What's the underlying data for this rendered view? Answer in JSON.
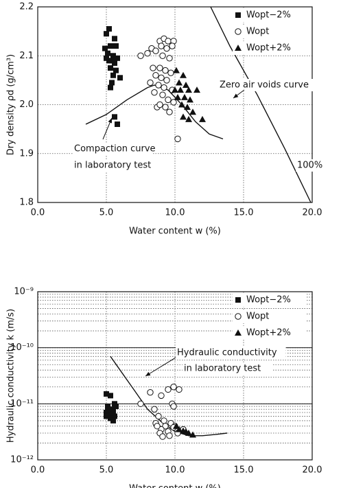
{
  "chart_data": [
    {
      "type": "scatter",
      "xlabel": "Water content w (%)",
      "ylabel": "Dry density ρd (g/cm³)",
      "xlim": [
        0,
        20
      ],
      "ylim": [
        1.8,
        2.2
      ],
      "xticks": [
        {
          "value": 0,
          "label": "0.0"
        },
        {
          "value": 5,
          "label": "5.0"
        },
        {
          "value": 10,
          "label": "10.0"
        },
        {
          "value": 15,
          "label": "15.0"
        },
        {
          "value": 20,
          "label": "20.0"
        }
      ],
      "yticks": [
        1.8,
        1.9,
        {
          "value": 2.0,
          "label": "2.0"
        },
        2.1,
        2.2
      ],
      "grid": true,
      "legend": "upper right",
      "series": [
        {
          "name": "Wopt−2%",
          "marker": "square",
          "color": "#111",
          "x": [
            5.2,
            5.0,
            5.6,
            4.9,
            5.3,
            5.7,
            5.1,
            5.5,
            5.8,
            5.2,
            5.4,
            5.6,
            5.0,
            5.3,
            5.7,
            5.5,
            6.0,
            5.4,
            5.3,
            5.6,
            5.8
          ],
          "values": [
            2.155,
            2.145,
            2.135,
            2.115,
            2.12,
            2.12,
            2.105,
            2.1,
            2.095,
            2.09,
            2.09,
            2.085,
            2.095,
            2.075,
            2.07,
            2.06,
            2.055,
            2.045,
            2.035,
            1.975,
            1.96
          ]
        },
        {
          "name": "Wopt",
          "marker": "circle",
          "color": "#111",
          "x": [
            7.5,
            8.0,
            8.3,
            8.6,
            8.9,
            9.2,
            9.5,
            9.9,
            9.0,
            9.4,
            9.8,
            9.1,
            9.6,
            8.4,
            8.9,
            9.3,
            9.7,
            8.6,
            9.0,
            9.4,
            8.2,
            8.8,
            9.2,
            9.8,
            8.5,
            9.1,
            9.5,
            8.7,
            9.3,
            9.6,
            8.9,
            9.9,
            10.2
          ],
          "values": [
            2.1,
            2.105,
            2.115,
            2.11,
            2.13,
            2.135,
            2.13,
            2.13,
            2.12,
            2.115,
            2.12,
            2.1,
            2.095,
            2.075,
            2.075,
            2.07,
            2.065,
            2.06,
            2.055,
            2.05,
            2.045,
            2.04,
            2.035,
            2.03,
            2.025,
            2.02,
            2.01,
            1.995,
            1.995,
            1.985,
            2.0,
            2.005,
            1.93
          ]
        },
        {
          "name": "Wopt+2%",
          "marker": "triangle",
          "color": "#111",
          "x": [
            10.1,
            10.6,
            10.3,
            10.8,
            10.0,
            10.4,
            11.0,
            11.6,
            10.2,
            10.7,
            11.1,
            10.5,
            10.9,
            11.3,
            10.6,
            12.0,
            11.0
          ],
          "values": [
            2.07,
            2.06,
            2.045,
            2.04,
            2.03,
            2.03,
            2.03,
            2.03,
            2.015,
            2.015,
            2.01,
            2.0,
            1.995,
            1.985,
            1.975,
            1.97,
            1.97
          ]
        }
      ],
      "lines": [
        {
          "x": [
            12.6,
            14.0,
            16.0,
            18.0,
            19.9
          ],
          "values": [
            2.2,
            2.12,
            2.02,
            1.91,
            1.8
          ]
        },
        {
          "x": [
            3.5,
            5.0,
            6.5,
            8.0,
            8.5,
            9.5,
            10.5,
            11.5,
            12.5,
            13.5
          ],
          "values": [
            1.96,
            1.98,
            2.01,
            2.035,
            2.04,
            2.03,
            2.0,
            1.965,
            1.94,
            1.93
          ]
        }
      ],
      "annotations": [
        "Zero air voids curve",
        "Compaction curve",
        "in laboratory test",
        "100%"
      ]
    },
    {
      "type": "scatter",
      "xlabel": "Water content w (%)",
      "ylabel": "Hydraulic conductivity k (m/s)",
      "xlim": [
        0,
        20
      ],
      "ylim": [
        1e-12,
        1e-09
      ],
      "ylog": true,
      "xticks": [
        {
          "value": 0,
          "label": "0.0"
        },
        {
          "value": 5,
          "label": "5.0"
        },
        {
          "value": 10,
          "label": "10.0"
        },
        {
          "value": 15,
          "label": "15.0"
        },
        {
          "value": 20,
          "label": "20.0"
        }
      ],
      "yticks": [
        {
          "value": 1e-12,
          "label": "10⁻¹²"
        },
        {
          "value": 1e-11,
          "label": "10⁻¹¹"
        },
        {
          "value": 1e-10,
          "label": "10⁻¹⁰"
        },
        {
          "value": 1e-09,
          "label": "10⁻⁹"
        }
      ],
      "grid": true,
      "legend": "upper right",
      "series": [
        {
          "name": "Wopt−2%",
          "marker": "square",
          "color": "#111",
          "x": [
            5.0,
            5.3,
            5.6,
            5.1,
            5.4,
            5.0,
            5.5,
            5.2,
            5.6,
            5.0,
            5.3,
            5.5,
            5.1,
            5.7
          ],
          "values": [
            1.5e-11,
            1.4e-11,
            1e-11,
            9e-12,
            8e-12,
            7e-12,
            7.5e-12,
            6.5e-12,
            6e-12,
            6e-12,
            5.5e-12,
            5e-12,
            8e-12,
            9e-12
          ]
        },
        {
          "name": "Wopt",
          "marker": "circle",
          "color": "#111",
          "x": [
            7.5,
            8.2,
            9.0,
            9.5,
            9.9,
            10.3,
            9.8,
            9.9,
            8.5,
            8.8,
            9.2,
            8.6,
            9.3,
            9.7,
            10.0,
            9.0,
            9.5,
            8.9,
            9.6,
            10.2,
            10.6,
            9.1,
            8.7,
            9.9
          ],
          "values": [
            1e-11,
            1.6e-11,
            1.4e-11,
            1.8e-11,
            2e-11,
            1.8e-11,
            1e-11,
            9e-12,
            8e-12,
            6e-12,
            5e-12,
            4.5e-12,
            4e-12,
            4.5e-12,
            4e-12,
            3.5e-12,
            3.2e-12,
            3e-12,
            2.7e-12,
            3e-12,
            3.5e-12,
            2.6e-12,
            4e-12,
            3.8e-12
          ]
        },
        {
          "name": "Wopt+2%",
          "marker": "triangle",
          "color": "#111",
          "x": [
            10.1,
            10.3,
            10.8,
            11.0,
            11.3,
            10.6
          ],
          "values": [
            4e-12,
            3.5e-12,
            3.2e-12,
            3e-12,
            2.8e-12,
            3.3e-12
          ]
        }
      ],
      "lines": [
        {
          "x": [
            5.3,
            6.0,
            7.0,
            8.0,
            9.0,
            10.0,
            11.0,
            12.0,
            13.0,
            13.8
          ],
          "values": [
            7e-11,
            4e-11,
            1.8e-11,
            8e-12,
            4.8e-12,
            3.2e-12,
            2.7e-12,
            2.7e-12,
            2.85e-12,
            3e-12
          ]
        }
      ],
      "annotations": [
        "Hydraulic conductivity",
        "in laboratory test"
      ]
    }
  ]
}
